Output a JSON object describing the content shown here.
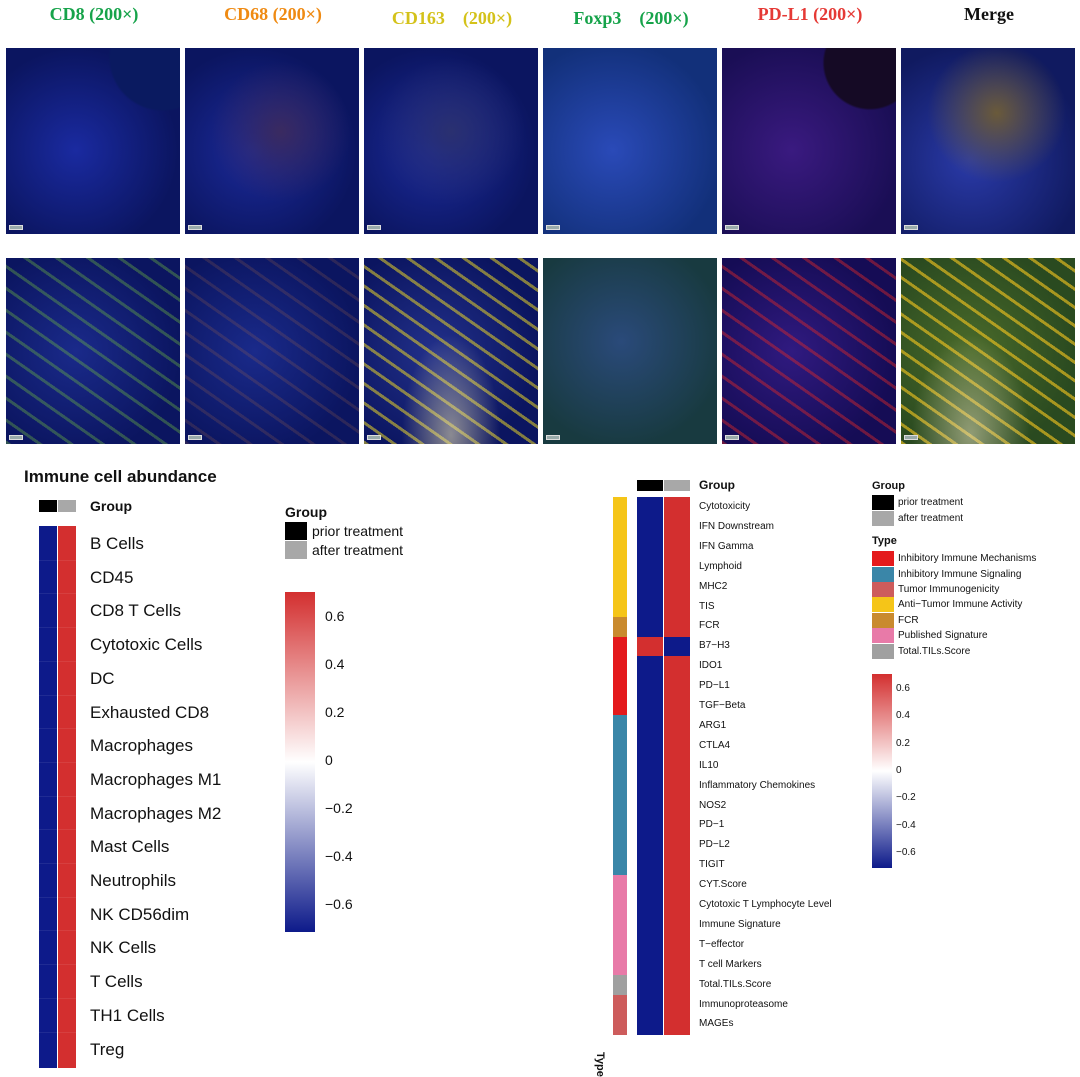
{
  "panels": {
    "columns": [
      {
        "label": "CD8 (200×)",
        "color": "#16a34a"
      },
      {
        "label": "CD68 (200×)",
        "color": "#ef8a12"
      },
      {
        "label": "CD163　(200×)",
        "color": "#d4c21a"
      },
      {
        "label": "Foxp3　(200×)",
        "color": "#16a34a"
      },
      {
        "label": "PD-L1 (200×)",
        "color": "#e53935"
      },
      {
        "label": "Merge",
        "color": "#111111"
      }
    ]
  },
  "left_heatmap": {
    "title": "Immune cell abundance",
    "group_header": "Group",
    "legend_title": "Group",
    "legend_items": [
      {
        "label": "prior treatment",
        "color": "#000000"
      },
      {
        "label": "after treatment",
        "color": "#a8a8a8"
      }
    ],
    "rows": [
      "B Cells",
      "CD45",
      "CD8 T Cells",
      "Cytotoxic Cells",
      "DC",
      "Exhausted CD8",
      "Macrophages",
      "Macrophages M1",
      "Macrophages M2",
      "Mast Cells",
      "Neutrophils",
      "NK CD56dim",
      "NK Cells",
      "T Cells",
      "TH1 Cells",
      "Treg"
    ],
    "scale_ticks": [
      "0.6",
      "0.4",
      "0.2",
      "0",
      "−0.2",
      "−0.4",
      "−0.6"
    ]
  },
  "right_heatmap": {
    "group_header": "Group",
    "type_axis_label": "Type",
    "group_legend_title": "Group",
    "group_legend": [
      {
        "label": "prior treatment",
        "color": "#000000"
      },
      {
        "label": "after treatment",
        "color": "#a8a8a8"
      }
    ],
    "type_legend_title": "Type",
    "type_legend": [
      {
        "label": "Inhibitory Immune Mechanisms",
        "color": "#e41a1c"
      },
      {
        "label": "Inhibitory Immune Signaling",
        "color": "#3a86a8"
      },
      {
        "label": "Tumor Immunogenicity",
        "color": "#cd5c5c"
      },
      {
        "label": "Anti−Tumor Immune Activity",
        "color": "#f5c518"
      },
      {
        "label": "FCR",
        "color": "#c98a2e"
      },
      {
        "label": "Published Signature",
        "color": "#e87aa8"
      },
      {
        "label": "Total.TILs.Score",
        "color": "#a0a0a0"
      }
    ],
    "rows": [
      "Cytotoxicity",
      "IFN Downstream",
      "IFN Gamma",
      "Lymphoid",
      "MHC2",
      "TIS",
      "FCR",
      "B7−H3",
      "IDO1",
      "PD−L1",
      "TGF−Beta",
      "ARG1",
      "CTLA4",
      "IL10",
      "Inflammatory Chemokines",
      "NOS2",
      "PD−1",
      "PD−L2",
      "TIGIT",
      "CYT.Score",
      "Cytotoxic T Lymphocyte Level",
      "Immune Signature",
      "T−effector",
      "T cell Markers",
      "Total.TILs.Score",
      "Immunoproteasome",
      "MAGEs"
    ],
    "scale_ticks": [
      "0.6",
      "0.4",
      "0.2",
      "0",
      "−0.2",
      "−0.4",
      "−0.6"
    ]
  },
  "colors": {
    "high": "#d32f2f",
    "low": "#0d1a8a",
    "mid": "#ffffff"
  }
}
